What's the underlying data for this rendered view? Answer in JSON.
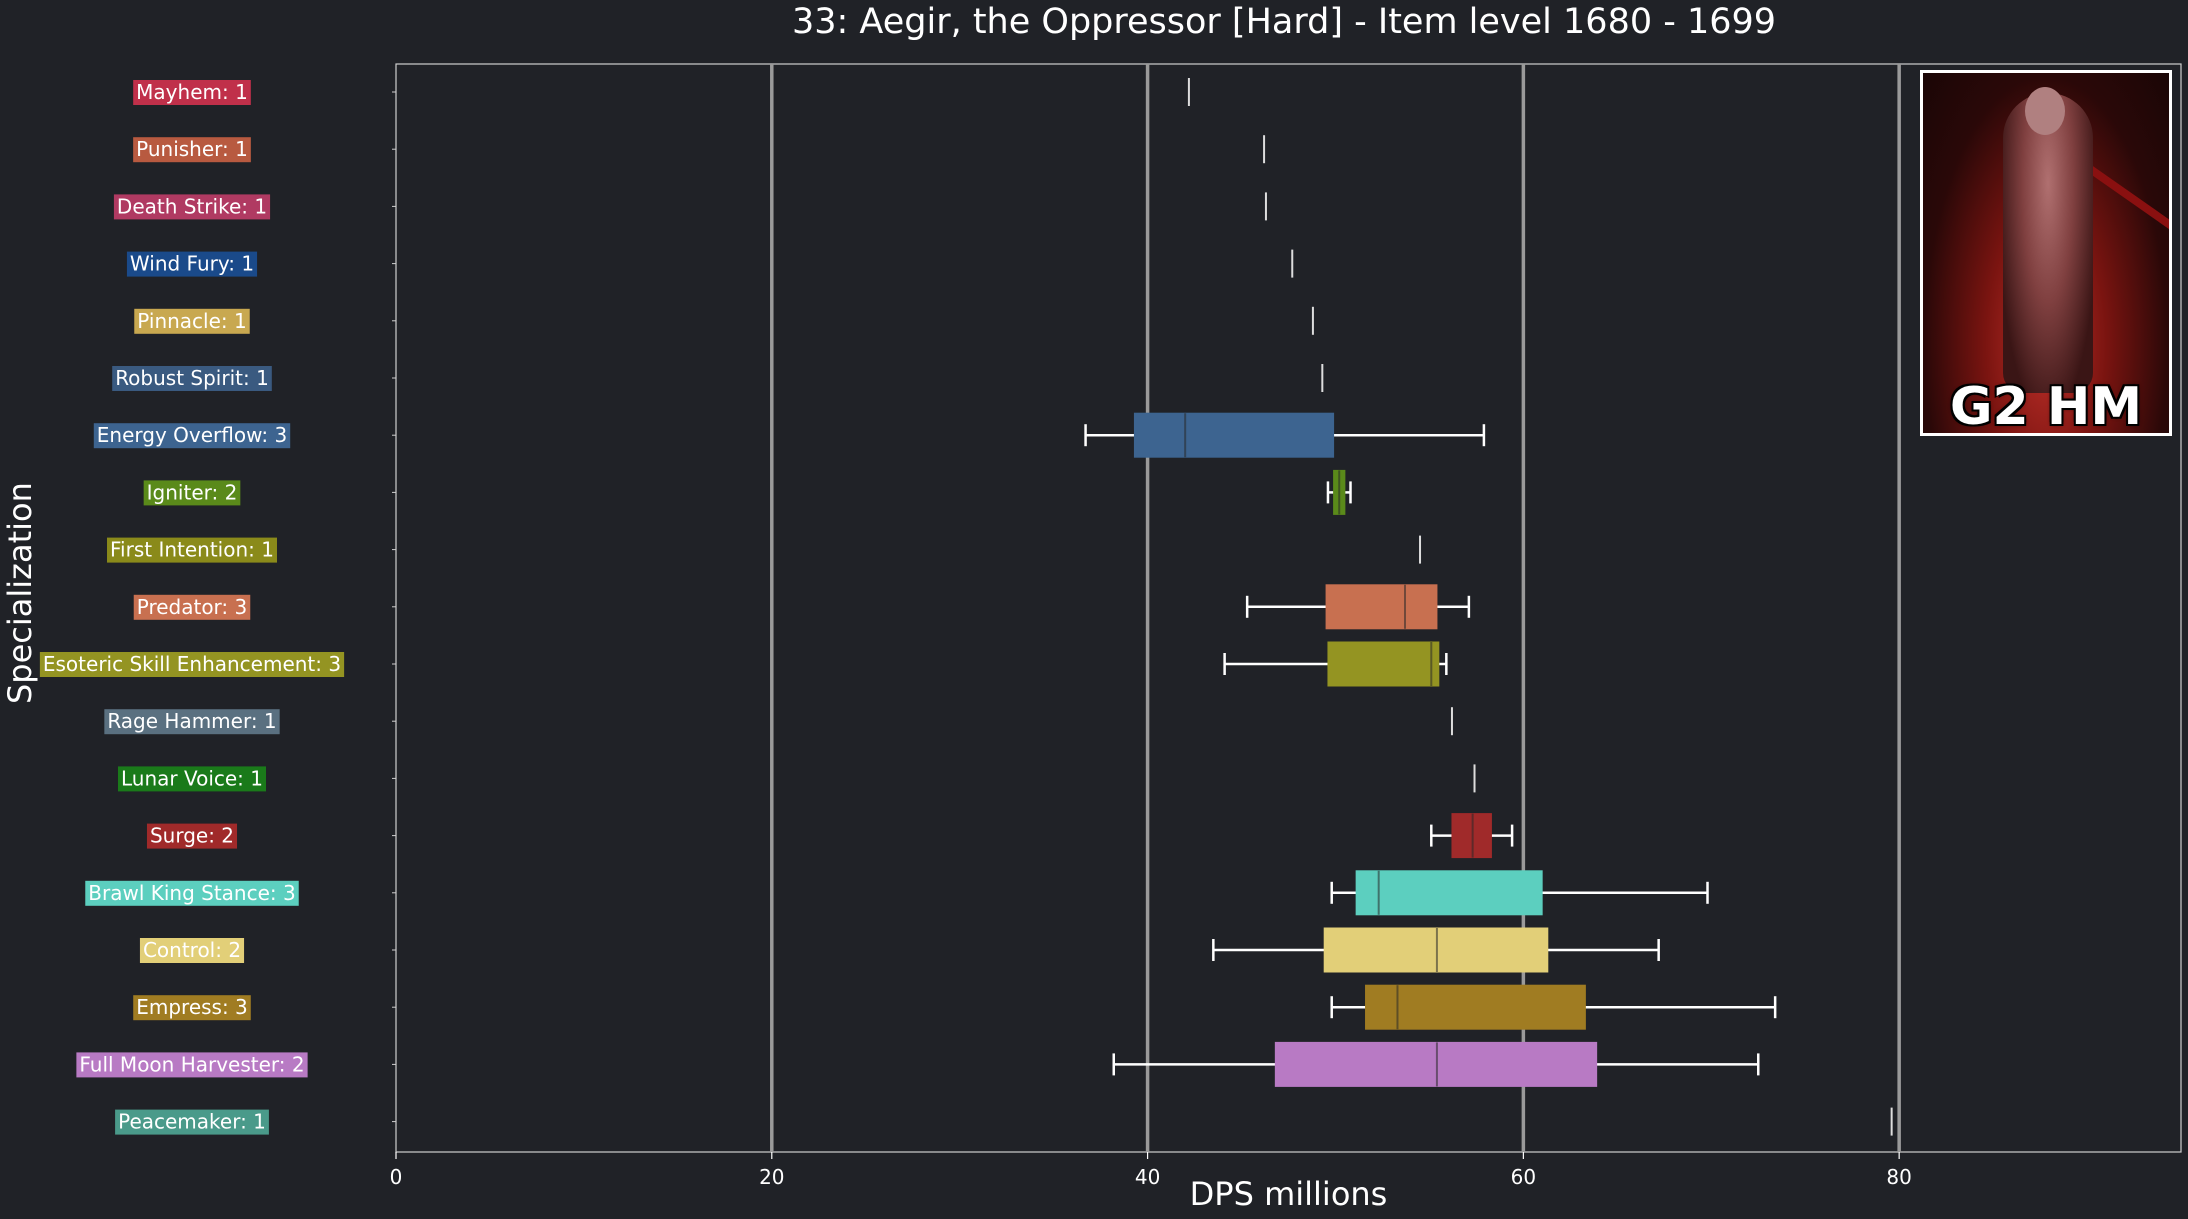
{
  "chart_data": {
    "type": "boxplot",
    "title": "33: Aegir, the Oppressor [Hard] - Item level 1680 - 1699",
    "xlabel": "DPS millions",
    "ylabel": "Specialization",
    "xlim": [
      0,
      95
    ],
    "xticks": [
      0,
      20,
      40,
      60,
      80
    ],
    "grid": "vertical major lines",
    "categories": [
      {
        "label": "Mayhem: 1",
        "color": "#c0304a",
        "min": 42.2,
        "q1": 42.2,
        "median": 42.2,
        "q3": 42.2,
        "max": 42.2
      },
      {
        "label": "Punisher: 1",
        "color": "#b85a40",
        "min": 46.2,
        "q1": 46.2,
        "median": 46.2,
        "q3": 46.2,
        "max": 46.2
      },
      {
        "label": "Death Strike: 1",
        "color": "#b03a62",
        "min": 46.3,
        "q1": 46.3,
        "median": 46.3,
        "q3": 46.3,
        "max": 46.3
      },
      {
        "label": "Wind Fury: 1",
        "color": "#1a4a8a",
        "min": 47.7,
        "q1": 47.7,
        "median": 47.7,
        "q3": 47.7,
        "max": 47.7
      },
      {
        "label": "Pinnacle: 1",
        "color": "#c8a850",
        "min": 48.8,
        "q1": 48.8,
        "median": 48.8,
        "q3": 48.8,
        "max": 48.8
      },
      {
        "label": "Robust Spirit: 1",
        "color": "#3a5a80",
        "min": 49.3,
        "q1": 49.3,
        "median": 49.3,
        "q3": 49.3,
        "max": 49.3
      },
      {
        "label": "Energy Overflow: 3",
        "color": "#3d6490",
        "min": 36.7,
        "q1": 39.3,
        "median": 42.0,
        "q3": 49.9,
        "max": 57.9
      },
      {
        "label": "Igniter: 2",
        "color": "#5a8a1a",
        "min": 49.6,
        "q1": 49.9,
        "median": 50.2,
        "q3": 50.5,
        "max": 50.8
      },
      {
        "label": "First Intention: 1",
        "color": "#8a8a1a",
        "min": 54.5,
        "q1": 54.5,
        "median": 54.5,
        "q3": 54.5,
        "max": 54.5
      },
      {
        "label": "Predator: 3",
        "color": "#c87050",
        "min": 45.3,
        "q1": 49.5,
        "median": 53.7,
        "q3": 55.4,
        "max": 57.1
      },
      {
        "label": "Esoteric Skill Enhancement: 3",
        "color": "#949422",
        "min": 44.1,
        "q1": 49.6,
        "median": 55.1,
        "q3": 55.5,
        "max": 55.9
      },
      {
        "label": "Rage Hammer: 1",
        "color": "#5a7080",
        "min": 56.2,
        "q1": 56.2,
        "median": 56.2,
        "q3": 56.2,
        "max": 56.2
      },
      {
        "label": "Lunar Voice: 1",
        "color": "#1a7a1a",
        "min": 57.4,
        "q1": 57.4,
        "median": 57.4,
        "q3": 57.4,
        "max": 57.4
      },
      {
        "label": "Surge: 2",
        "color": "#a02a2a",
        "min": 55.1,
        "q1": 56.2,
        "median": 57.3,
        "q3": 58.3,
        "max": 59.4
      },
      {
        "label": "Brawl King Stance: 3",
        "color": "#5ccfbf",
        "min": 49.8,
        "q1": 51.1,
        "median": 52.3,
        "q3": 61.0,
        "max": 69.8
      },
      {
        "label": "Control: 2",
        "color": "#e2cf78",
        "min": 43.5,
        "q1": 49.4,
        "median": 55.4,
        "q3": 61.3,
        "max": 67.2
      },
      {
        "label": "Empress: 3",
        "color": "#a07c22",
        "min": 49.8,
        "q1": 51.6,
        "median": 53.3,
        "q3": 63.3,
        "max": 73.4
      },
      {
        "label": "Full Moon Harvester: 2",
        "color": "#b87ac4",
        "min": 38.2,
        "q1": 46.8,
        "median": 55.4,
        "q3": 63.9,
        "max": 72.5
      },
      {
        "label": "Peacemaker: 1",
        "color": "#4a9a8a",
        "min": 79.6,
        "q1": 79.6,
        "median": 79.6,
        "q3": 79.6,
        "max": 79.6
      }
    ]
  },
  "boss_image": {
    "badge": "G2 HM"
  }
}
